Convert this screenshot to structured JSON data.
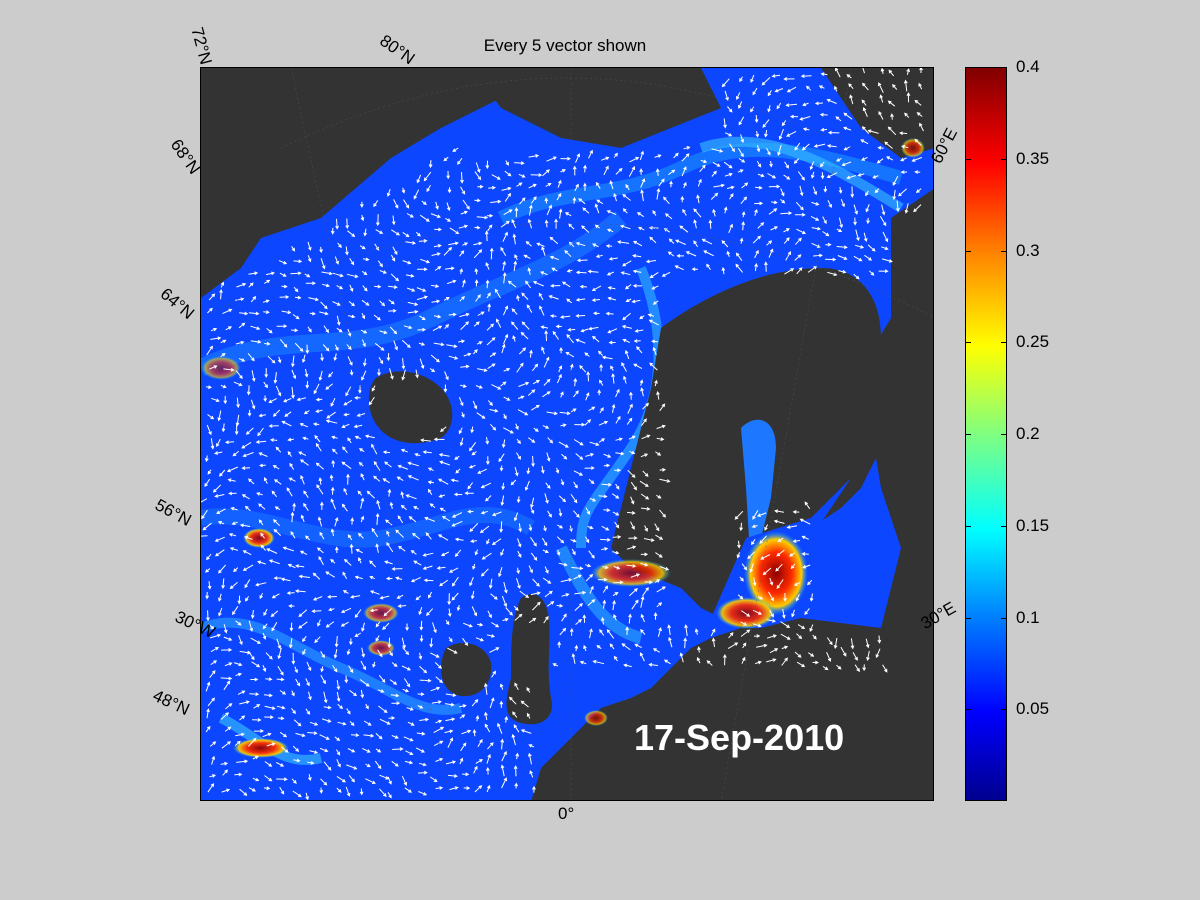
{
  "figure": {
    "title": "Every 5 vector shown",
    "date": "17-Sep-2010"
  },
  "map": {
    "lat_labels": [
      "72°N",
      "68°N",
      "64°N",
      "56°N",
      "48°N"
    ],
    "lon_labels": [
      "80°N",
      "30°W",
      "0°",
      "30°E",
      "60°E"
    ],
    "land_color": "#333333",
    "vector_color": "#ffffff"
  },
  "colorbar": {
    "colormap": "jet",
    "range": [
      0,
      0.4
    ],
    "ticks": [
      "0.4",
      "0.35",
      "0.3",
      "0.25",
      "0.2",
      "0.15",
      "0.1",
      "0.05"
    ]
  }
}
